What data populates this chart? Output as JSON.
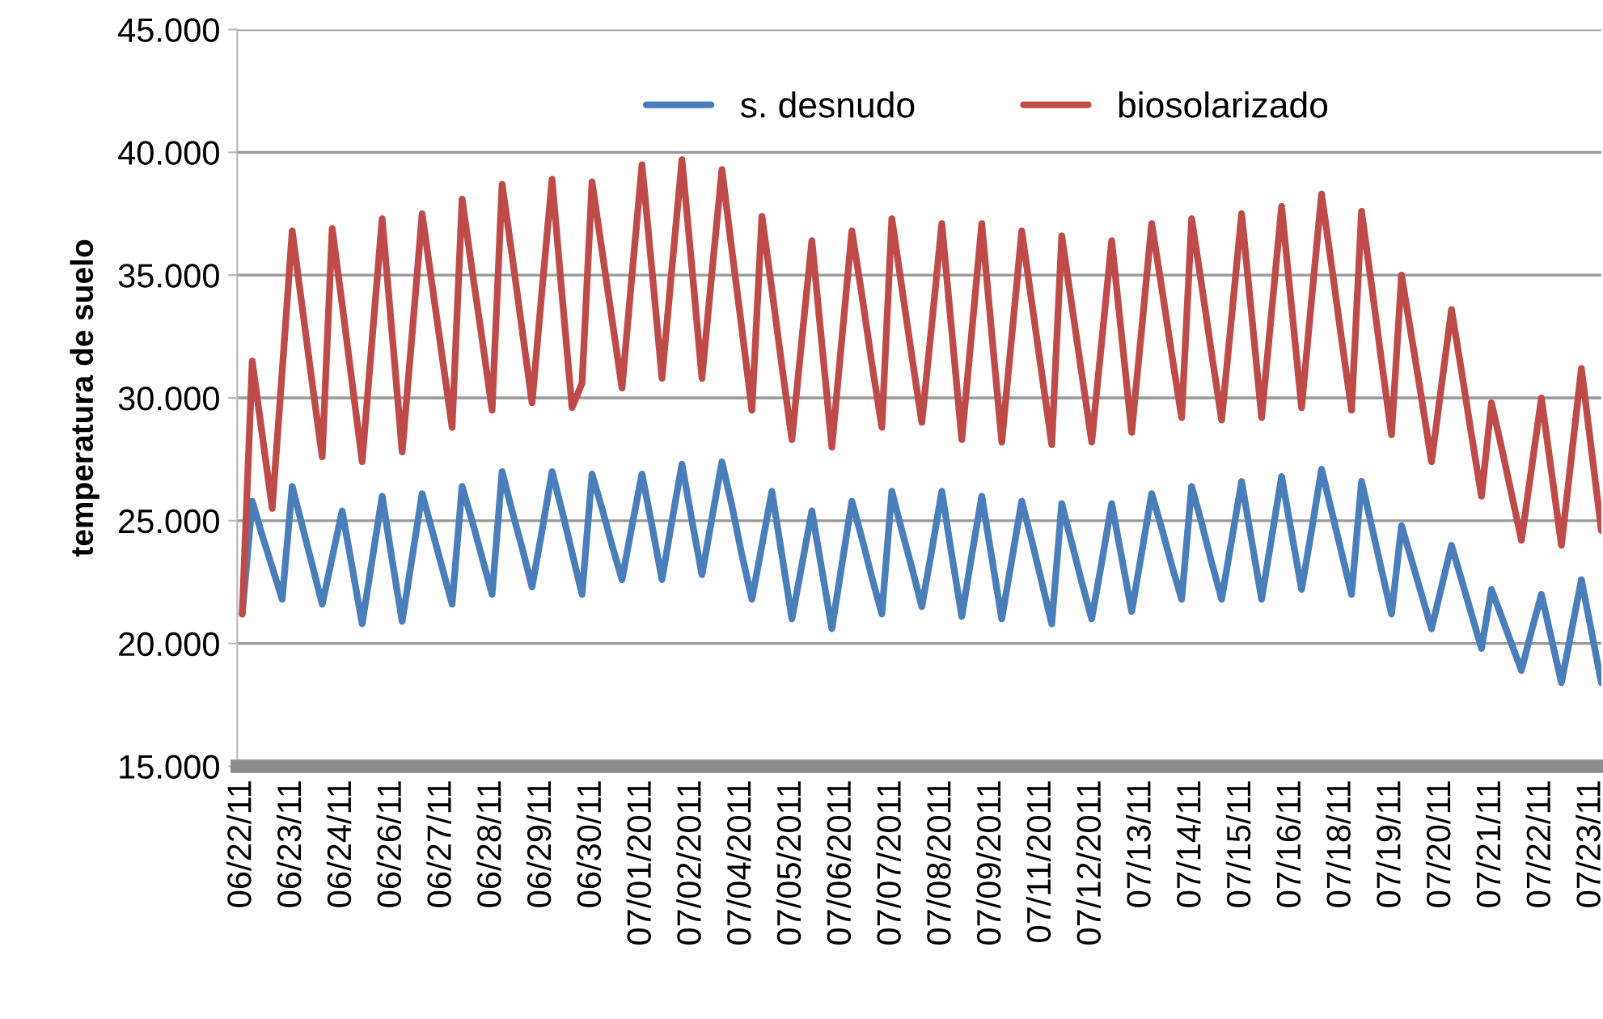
{
  "chart_data": {
    "type": "line",
    "ylabel": "temperatura de suelo",
    "categories": [
      "06/22/11",
      null,
      null,
      null,
      null,
      "06/23/11",
      null,
      null,
      null,
      null,
      "06/24/11",
      null,
      null,
      null,
      null,
      "06/26/11",
      null,
      null,
      null,
      null,
      "06/27/11",
      null,
      null,
      null,
      null,
      "06/28/11",
      null,
      null,
      null,
      null,
      "06/29/11",
      null,
      null,
      null,
      null,
      "06/30/11",
      null,
      null,
      null,
      null,
      "07/01/2011",
      null,
      null,
      null,
      null,
      "07/02/2011",
      null,
      null,
      null,
      null,
      "07/04/2011",
      null,
      null,
      null,
      null,
      "07/05/2011",
      null,
      null,
      null,
      null,
      "07/06/2011",
      null,
      null,
      null,
      null,
      "07/07/2011",
      null,
      null,
      null,
      null,
      "07/08/2011",
      null,
      null,
      null,
      null,
      "07/09/2011",
      null,
      null,
      null,
      null,
      "07/11/2011",
      null,
      null,
      null,
      null,
      "07/12/2011",
      null,
      null,
      null,
      null,
      "07/13/11",
      null,
      null,
      null,
      null,
      "07/14/11",
      null,
      null,
      null,
      null,
      "07/15/11",
      null,
      null,
      null,
      null,
      "07/16/11",
      null,
      null,
      null,
      null,
      "07/18/11",
      null,
      null,
      null,
      null,
      "07/19/11",
      null,
      null,
      null,
      null,
      "07/20/11",
      null,
      null,
      null,
      null,
      "07/21/11",
      null,
      null,
      null,
      null,
      "07/22/11",
      null,
      null,
      null,
      null,
      "07/23/11",
      null
    ],
    "ylim": [
      15,
      45
    ],
    "yticks": [
      {
        "value": 15,
        "label": "15.000"
      },
      {
        "value": 20,
        "label": "20.000"
      },
      {
        "value": 25,
        "label": "25.000"
      },
      {
        "value": 30,
        "label": "30.000"
      },
      {
        "value": 35,
        "label": "35.000"
      },
      {
        "value": 40,
        "label": "40.000"
      },
      {
        "value": 45,
        "label": "45.000"
      }
    ],
    "grid": "y",
    "legend": "top",
    "marker": "none",
    "line_style": "solid",
    "series": [
      {
        "name": "s. desnudo",
        "color": "#4a7ebb",
        "values": [
          21.2,
          25.8,
          24.4,
          23.1,
          21.8,
          26.4,
          24.8,
          23.2,
          21.6,
          23.5,
          25.4,
          23.1,
          20.8,
          23.4,
          26.0,
          23.4,
          20.9,
          23.5,
          26.1,
          24.6,
          23.1,
          21.6,
          26.4,
          25.0,
          23.5,
          22.0,
          27.0,
          25.4,
          23.9,
          22.3,
          24.6,
          27.0,
          25.4,
          23.7,
          22.0,
          26.9,
          25.5,
          24.0,
          22.6,
          24.8,
          26.9,
          24.8,
          22.6,
          25.0,
          27.3,
          25.0,
          22.8,
          25.1,
          27.4,
          25.6,
          23.6,
          21.8,
          24.0,
          26.2,
          23.6,
          21.0,
          23.2,
          25.4,
          23.0,
          20.6,
          23.2,
          25.8,
          24.3,
          22.7,
          21.2,
          26.2,
          24.6,
          23.1,
          21.5,
          23.8,
          26.2,
          23.6,
          21.1,
          23.6,
          26.0,
          23.5,
          21.0,
          23.4,
          25.8,
          24.2,
          22.5,
          20.8,
          25.7,
          24.1,
          22.5,
          21.0,
          23.3,
          25.7,
          23.5,
          21.3,
          23.7,
          26.1,
          24.7,
          23.2,
          21.8,
          26.4,
          24.9,
          23.3,
          21.8,
          24.2,
          26.6,
          24.2,
          21.8,
          24.3,
          26.8,
          24.5,
          22.2,
          24.6,
          27.1,
          25.4,
          23.7,
          22.0,
          26.6,
          24.8,
          23.0,
          21.2,
          24.8,
          23.4,
          22.0,
          20.6,
          22.3,
          24.0,
          22.6,
          21.2,
          19.8,
          22.2,
          21.1,
          20.0,
          18.9,
          20.5,
          22.0,
          20.2,
          18.4,
          20.5,
          22.6,
          20.5,
          18.4
        ]
      },
      {
        "name": "biosolarizado",
        "color": "#be4b48",
        "values": [
          21.2,
          31.5,
          28.5,
          25.5,
          31.1,
          36.8,
          33.7,
          30.6,
          27.6,
          36.9,
          33.8,
          30.6,
          27.4,
          32.4,
          37.3,
          32.6,
          27.8,
          32.6,
          37.5,
          34.6,
          31.7,
          28.8,
          38.1,
          35.2,
          32.4,
          29.5,
          38.7,
          35.8,
          32.8,
          29.8,
          34.4,
          38.9,
          34.2,
          29.6,
          30.6,
          38.8,
          36.0,
          33.2,
          30.4,
          35.0,
          39.5,
          35.2,
          30.8,
          35.3,
          39.7,
          35.3,
          30.8,
          35.1,
          39.3,
          36.0,
          32.8,
          29.5,
          37.4,
          34.4,
          31.3,
          28.3,
          32.4,
          36.4,
          32.2,
          28.0,
          32.4,
          36.8,
          34.2,
          31.4,
          28.8,
          37.3,
          34.5,
          31.7,
          29.0,
          33.0,
          37.1,
          32.7,
          28.3,
          32.7,
          37.1,
          32.6,
          28.2,
          32.5,
          36.8,
          33.9,
          31.0,
          28.1,
          36.6,
          33.8,
          31.0,
          28.2,
          32.3,
          36.4,
          32.5,
          28.6,
          32.8,
          37.1,
          34.5,
          31.8,
          29.2,
          37.3,
          34.6,
          31.8,
          29.1,
          33.3,
          37.5,
          33.4,
          29.2,
          33.5,
          37.8,
          33.7,
          29.6,
          34.0,
          38.3,
          35.4,
          32.4,
          29.5,
          37.6,
          34.6,
          31.5,
          28.5,
          35.0,
          32.5,
          30.0,
          27.4,
          30.5,
          33.6,
          31.1,
          28.5,
          26.0,
          29.8,
          28.0,
          26.1,
          24.2,
          27.1,
          30.0,
          27.0,
          24.0,
          27.6,
          31.2,
          27.9,
          24.6
        ]
      }
    ]
  }
}
